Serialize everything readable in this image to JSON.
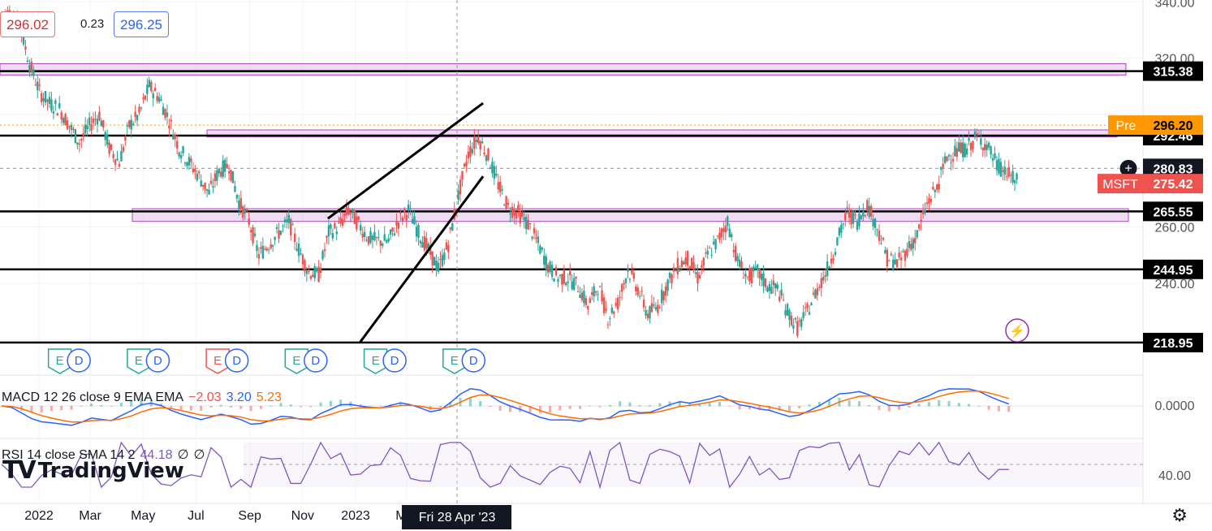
{
  "header": {
    "bid": "296.02",
    "spread": "0.23",
    "ask": "296.25"
  },
  "brand": {
    "mark": "TV",
    "name": "TradingView"
  },
  "chart_data": {
    "type": "candlestick",
    "symbol": "MSFT",
    "last_price": "275.42",
    "premarket": {
      "label": "Pre",
      "value": "296.20"
    },
    "crosshair_price": "280.83",
    "crosshair_date": "Fri 28 Apr '23",
    "y_ticks": [
      "340.00",
      "320.00",
      "260.00",
      "240.00"
    ],
    "x_ticks": [
      "2022",
      "Mar",
      "May",
      "Jul",
      "Sep",
      "Nov",
      "2023",
      "Mar"
    ],
    "horizontal_levels": [
      {
        "value": 315.38,
        "label": "315.38",
        "zone": [
          314,
          318
        ]
      },
      {
        "value": 292.46,
        "label": "292.46",
        "zone": [
          292,
          294.5
        ]
      },
      {
        "value": 265.55,
        "label": "265.55",
        "zone": [
          262,
          266.5
        ]
      },
      {
        "value": 244.95,
        "label": "244.95"
      },
      {
        "value": 218.95,
        "label": "218.95"
      }
    ],
    "trendlines": [
      {
        "from": [
          "2022-11-30",
          263
        ],
        "to": [
          "2023-05-28",
          304
        ]
      },
      {
        "from": [
          "2023-01-06",
          219
        ],
        "to": [
          "2023-05-28",
          278
        ]
      }
    ],
    "closes_weekly": [
      336,
      332,
      318,
      308,
      304,
      302,
      296,
      290,
      296,
      300,
      288,
      283,
      296,
      300,
      310,
      306,
      298,
      288,
      283,
      278,
      272,
      280,
      282,
      269,
      262,
      250,
      254,
      258,
      262,
      252,
      244,
      243,
      258,
      260,
      266,
      261,
      256,
      255,
      255,
      262,
      266,
      258,
      252,
      245,
      254,
      271,
      286,
      292,
      285,
      275,
      267,
      265,
      261,
      254,
      246,
      242,
      242,
      239,
      232,
      239,
      228,
      233,
      245,
      238,
      229,
      232,
      240,
      246,
      249,
      242,
      250,
      255,
      262,
      248,
      242,
      244,
      239,
      238,
      230,
      224,
      230,
      238,
      245,
      255,
      265,
      262,
      268,
      260,
      249,
      247,
      252,
      257,
      268,
      274,
      285,
      287,
      288,
      292,
      289,
      282,
      279,
      276
    ],
    "events": {
      "earnings": [
        "2022-01-25",
        "2022-04-26",
        "2022-07-26",
        "2022-10-25",
        "2023-01-24",
        "2023-04-25"
      ],
      "dividends": [
        "2022-02-16",
        "2022-05-18",
        "2022-08-17",
        "2022-11-16",
        "2023-02-15",
        "2023-05-17"
      ]
    },
    "macd": {
      "label": "MACD 12 26 close 9 EMA EMA",
      "hist": "−2.03",
      "macd": "3.20",
      "signal": "5.23",
      "y_tick": "0.0000"
    },
    "rsi": {
      "label": "RSI 14 close SMA 14 2",
      "value": "44.18",
      "a": "∅",
      "b": "∅",
      "y_tick": "40.00"
    },
    "colors": {
      "up": "#26a69a",
      "down": "#ef5350",
      "zone_fill": "#e1bee7",
      "zone_stroke": "#ab47bc",
      "macd": "#2962ff",
      "signal": "#ff6d00",
      "rsi": "#7e57c2"
    }
  }
}
